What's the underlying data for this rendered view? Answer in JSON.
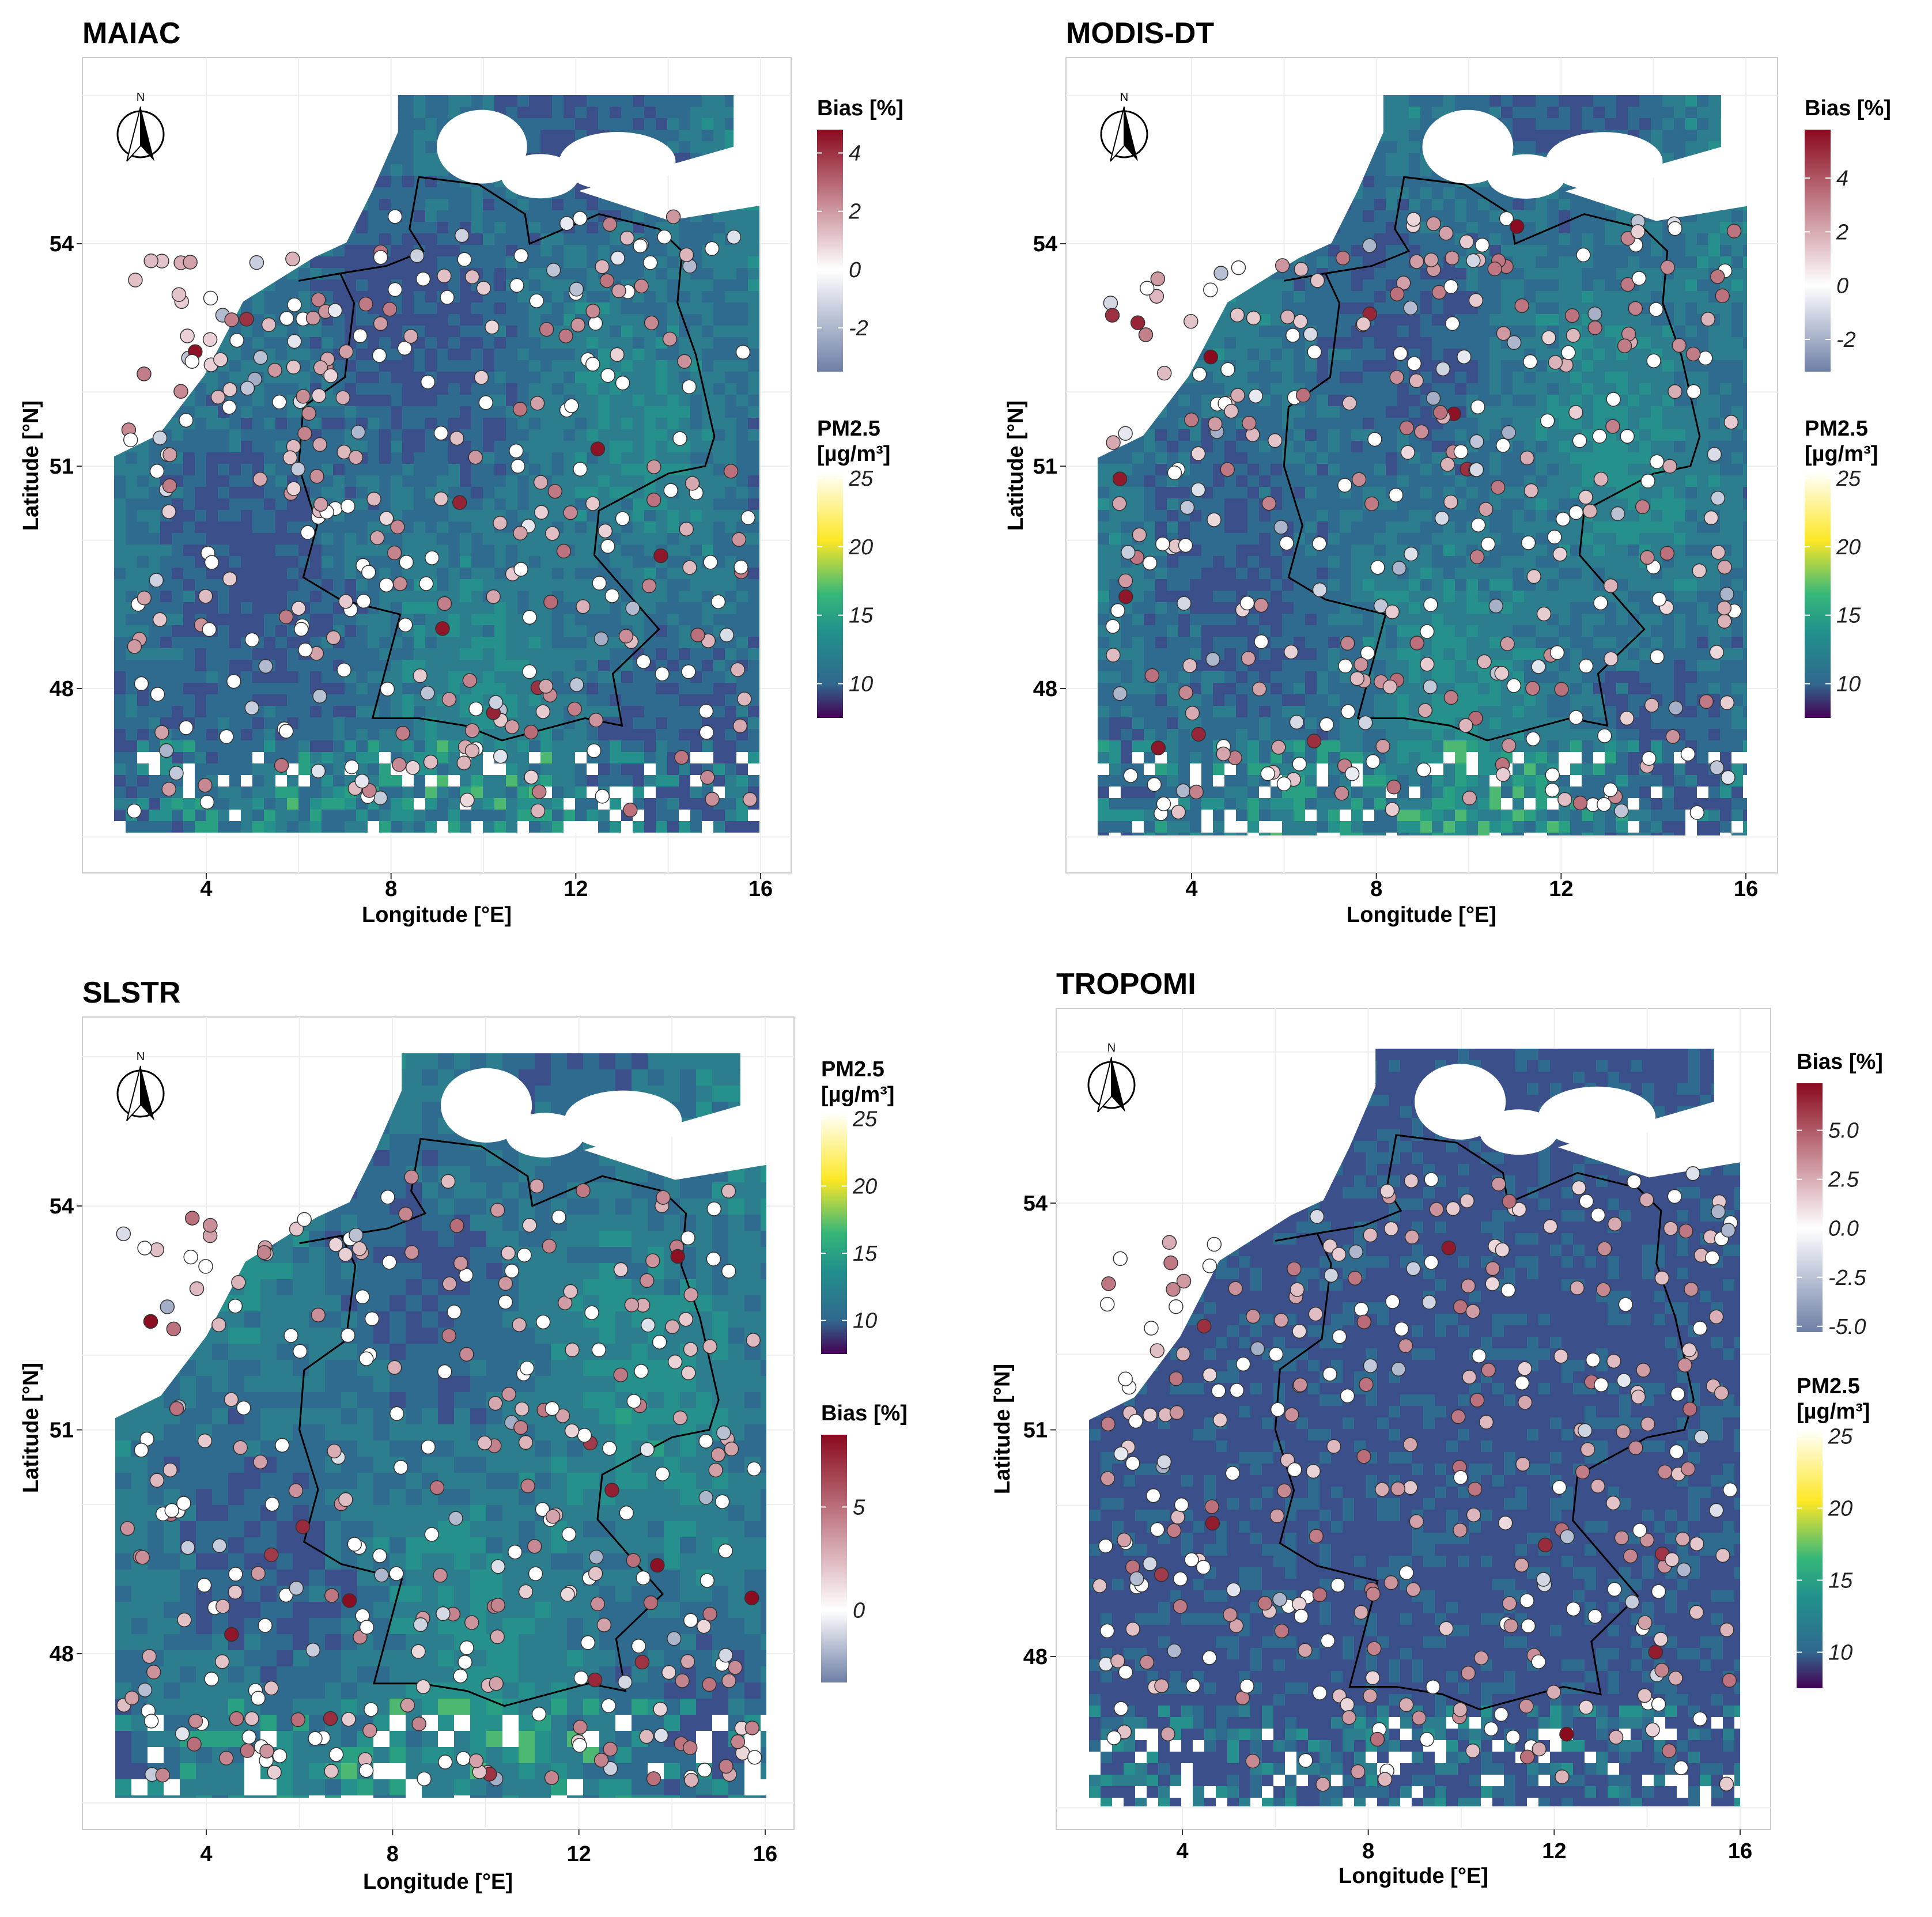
{
  "colors": {
    "bias_low": "#6e7fa6",
    "bias_mid": "#ffffff",
    "bias_high": "#8a0a1e",
    "pm_scale": [
      "#440154",
      "#31688e",
      "#21918c",
      "#35b779",
      "#fde725",
      "#ffffff"
    ],
    "land": "#2f7f8e",
    "background": "#ffffff"
  },
  "icons": {
    "north_arrow": "north-arrow-icon"
  },
  "panels": [
    {
      "title": "MAIAC",
      "xlabel": "Longitude [°E]",
      "ylabel": "Latitude [°N]",
      "north_label": "N",
      "xticks": [
        "4",
        "8",
        "12",
        "16"
      ],
      "yticks": [
        "48",
        "51",
        "54"
      ],
      "legend_top": {
        "title": "Bias [%]",
        "ticks": [
          "4",
          "2",
          "0",
          "-2"
        ],
        "tick_values": [
          4,
          2,
          0,
          -2
        ],
        "range": [
          -3.5,
          4.8
        ],
        "type": "bias"
      },
      "legend_bottom": {
        "title_line1": "PM2.5",
        "title_line2": "[µg/m³]",
        "ticks": [
          "25",
          "20",
          "15",
          "10"
        ],
        "tick_values": [
          25,
          20,
          15,
          10
        ],
        "range": [
          7.5,
          25.5
        ],
        "type": "pm"
      }
    },
    {
      "title": "MODIS-DT",
      "xlabel": "Longitude [°E]",
      "ylabel": "Latitude [°N]",
      "north_label": "N",
      "xticks": [
        "4",
        "8",
        "12",
        "16"
      ],
      "yticks": [
        "48",
        "51",
        "54"
      ],
      "legend_top": {
        "title": "Bias [%]",
        "ticks": [
          "4",
          "2",
          "0",
          "-2"
        ],
        "tick_values": [
          4,
          2,
          0,
          -2
        ],
        "range": [
          -3.2,
          5.8
        ],
        "type": "bias"
      },
      "legend_bottom": {
        "title_line1": "PM2.5",
        "title_line2": "[µg/m³]",
        "ticks": [
          "25",
          "20",
          "15",
          "10"
        ],
        "tick_values": [
          25,
          20,
          15,
          10
        ],
        "range": [
          7.5,
          25.5
        ],
        "type": "pm"
      }
    },
    {
      "title": "SLSTR",
      "xlabel": "Longitude [°E]",
      "ylabel": "Latitude [°N]",
      "north_label": "N",
      "xticks": [
        "4",
        "8",
        "12",
        "16"
      ],
      "yticks": [
        "48",
        "51",
        "54"
      ],
      "legend_top": {
        "title_line1": "PM2.5",
        "title_line2": "[µg/m³]",
        "ticks": [
          "25",
          "20",
          "15",
          "10"
        ],
        "tick_values": [
          25,
          20,
          15,
          10
        ],
        "range": [
          7.5,
          25.5
        ],
        "type": "pm"
      },
      "legend_bottom": {
        "title": "Bias [%]",
        "ticks": [
          "5",
          "0"
        ],
        "tick_values": [
          5,
          0
        ],
        "range": [
          -3.5,
          8.5
        ],
        "type": "bias"
      }
    },
    {
      "title": "TROPOMI",
      "xlabel": "Longitude [°E]",
      "ylabel": "Latitude [°N]",
      "north_label": "N",
      "xticks": [
        "4",
        "8",
        "12",
        "16"
      ],
      "yticks": [
        "48",
        "51",
        "54"
      ],
      "legend_top": {
        "title": "Bias [%]",
        "ticks": [
          "5.0",
          "2.5",
          "0.0",
          "-2.5",
          "-5.0"
        ],
        "tick_values": [
          5,
          2.5,
          0,
          -2.5,
          -5
        ],
        "range": [
          -5.3,
          7.4
        ],
        "type": "bias"
      },
      "legend_bottom": {
        "title_line1": "PM2.5",
        "title_line2": "[µg/m³]",
        "ticks": [
          "25",
          "20",
          "15",
          "10"
        ],
        "tick_values": [
          25,
          20,
          15,
          10
        ],
        "range": [
          7.5,
          25.5
        ],
        "type": "pm"
      }
    }
  ]
}
